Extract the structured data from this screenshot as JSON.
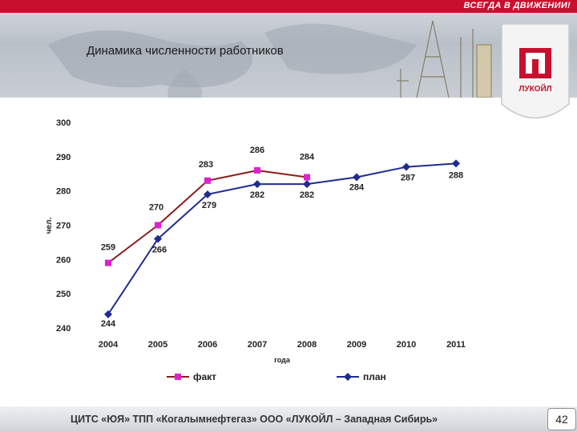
{
  "header": {
    "slogan": "ВСЕГДА В ДВИЖЕНИИ!",
    "title": "Динамика численности работников",
    "logo_text": "ЛУКОЙЛ",
    "brand_color": "#c8102e"
  },
  "footer": {
    "text": "ЦИТС «ЮЯ» ТПП «Когалымнефтегаз» ООО «ЛУКОЙЛ – Западная Сибирь»",
    "page_number": "42"
  },
  "chart_data": {
    "type": "line",
    "title": "",
    "xlabel": "года",
    "ylabel": "чел.",
    "categories": [
      "2004",
      "2005",
      "2006",
      "2007",
      "2008",
      "2009",
      "2010",
      "2011"
    ],
    "ylim": [
      240,
      300
    ],
    "yticks": [
      240,
      250,
      260,
      270,
      280,
      290,
      300
    ],
    "legend_position": "bottom",
    "series": [
      {
        "name": "факт",
        "color": "#8b1a1a",
        "marker": "square",
        "marker_color": "#e020d0",
        "values": [
          259,
          270,
          283,
          286,
          284,
          null,
          null,
          null
        ],
        "labels": [
          "259",
          "270",
          "283",
          "286",
          "284",
          "",
          "",
          ""
        ]
      },
      {
        "name": "план",
        "color": "#1f2b8f",
        "marker": "diamond",
        "marker_color": "#1f2b8f",
        "values": [
          244,
          266,
          279,
          282,
          282,
          284,
          287,
          288
        ],
        "labels": [
          "244",
          "266",
          "279",
          "282",
          "282",
          "284",
          "287",
          "288"
        ]
      }
    ]
  }
}
